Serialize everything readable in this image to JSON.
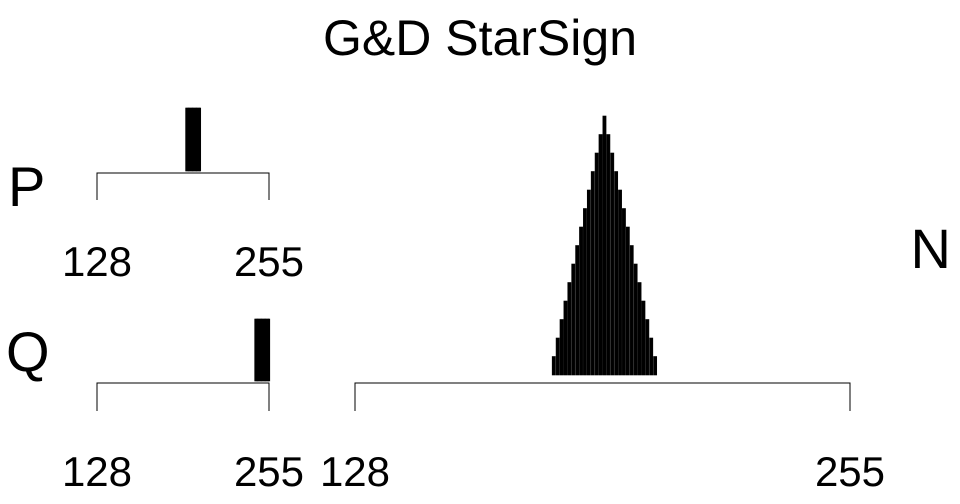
{
  "chart_data": {
    "type": "bar",
    "title": "G&D StarSign",
    "panels": [
      {
        "label": "P",
        "xlim": [
          128,
          255
        ],
        "tick_labels": [
          "128",
          "255"
        ],
        "bins": [
          {
            "x": 194,
            "count": 1
          },
          {
            "x": 195,
            "count": 1
          },
          {
            "x": 196,
            "count": 1
          },
          {
            "x": 197,
            "count": 1
          },
          {
            "x": 198,
            "count": 1
          },
          {
            "x": 199,
            "count": 1
          },
          {
            "x": 200,
            "count": 1
          },
          {
            "x": 201,
            "count": 1
          },
          {
            "x": 202,
            "count": 1
          },
          {
            "x": 203,
            "count": 1
          },
          {
            "x": 204,
            "count": 1
          }
        ]
      },
      {
        "label": "Q",
        "xlim": [
          128,
          255
        ],
        "tick_labels": [
          "128",
          "255"
        ],
        "bins": [
          {
            "x": 245,
            "count": 1
          },
          {
            "x": 246,
            "count": 1
          },
          {
            "x": 247,
            "count": 1
          },
          {
            "x": 248,
            "count": 1
          },
          {
            "x": 249,
            "count": 1
          },
          {
            "x": 250,
            "count": 1
          },
          {
            "x": 251,
            "count": 1
          },
          {
            "x": 252,
            "count": 1
          },
          {
            "x": 253,
            "count": 1
          },
          {
            "x": 254,
            "count": 1
          },
          {
            "x": 255,
            "count": 1
          }
        ]
      },
      {
        "label": "N",
        "xlim": [
          128,
          255
        ],
        "tick_labels": [
          "128",
          "255"
        ],
        "bins": [
          {
            "x": 179,
            "count": 1
          },
          {
            "x": 180,
            "count": 2
          },
          {
            "x": 181,
            "count": 3
          },
          {
            "x": 182,
            "count": 4
          },
          {
            "x": 183,
            "count": 5
          },
          {
            "x": 184,
            "count": 6
          },
          {
            "x": 185,
            "count": 7
          },
          {
            "x": 186,
            "count": 8
          },
          {
            "x": 187,
            "count": 9
          },
          {
            "x": 188,
            "count": 10
          },
          {
            "x": 189,
            "count": 11
          },
          {
            "x": 190,
            "count": 12
          },
          {
            "x": 191,
            "count": 13
          },
          {
            "x": 192,
            "count": 14
          },
          {
            "x": 193,
            "count": 13
          },
          {
            "x": 194,
            "count": 12
          },
          {
            "x": 195,
            "count": 11
          },
          {
            "x": 196,
            "count": 10
          },
          {
            "x": 197,
            "count": 9
          },
          {
            "x": 198,
            "count": 8
          },
          {
            "x": 199,
            "count": 7
          },
          {
            "x": 200,
            "count": 6
          },
          {
            "x": 201,
            "count": 5
          },
          {
            "x": 202,
            "count": 4
          },
          {
            "x": 203,
            "count": 3
          },
          {
            "x": 204,
            "count": 2
          },
          {
            "x": 205,
            "count": 1
          }
        ]
      }
    ]
  }
}
